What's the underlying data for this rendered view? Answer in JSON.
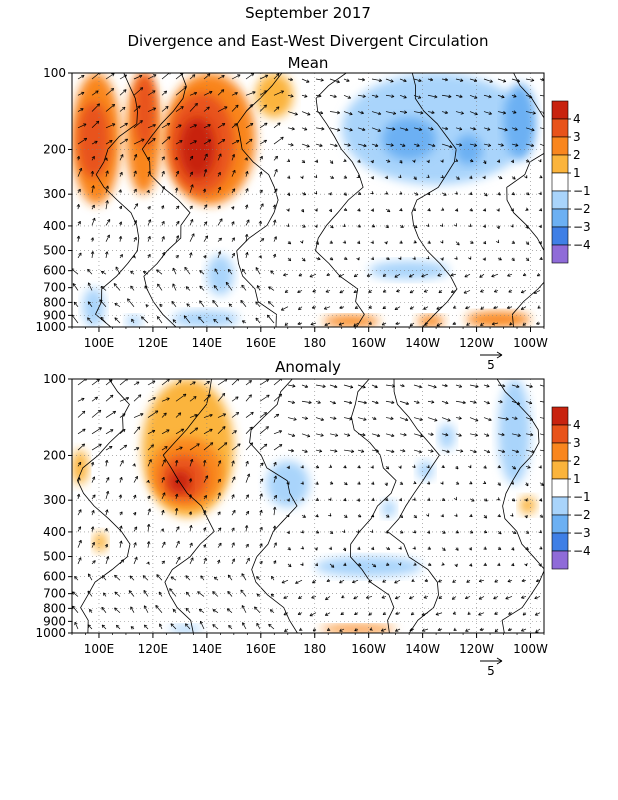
{
  "titles": {
    "line1": "September 2017",
    "line2": "Divergence and East-West Divergent Circulation"
  },
  "colors": {
    "div_pos": [
      "#ffffff",
      "#fbb43c",
      "#f9861e",
      "#e8531a",
      "#c8230f"
    ],
    "div_neg": [
      "#ffffff",
      "#a9d4fb",
      "#6cb0f3",
      "#3f7fe6",
      "#8f6bd8"
    ],
    "vector": "#000000",
    "contour": "#000000",
    "grid": "#7f7f7f"
  },
  "chart_data": [
    {
      "type": "heatmap",
      "panel": "mean",
      "title": "Mean",
      "xlabel": "",
      "ylabel": "",
      "x_ticks": [
        "100E",
        "120E",
        "140E",
        "160E",
        "180",
        "160W",
        "140W",
        "120W",
        "100W"
      ],
      "x_tick_values": [
        100,
        120,
        140,
        160,
        180,
        200,
        220,
        240,
        260
      ],
      "xlim": [
        90,
        265
      ],
      "y_ticks": [
        "100",
        "200",
        "300",
        "400",
        "500",
        "600",
        "700",
        "800",
        "900",
        "1000"
      ],
      "y_tick_values": [
        100,
        200,
        300,
        400,
        500,
        600,
        700,
        800,
        900,
        1000
      ],
      "ylim": [
        1000,
        100
      ],
      "y_scale": "log",
      "grid": true,
      "vector_reference": {
        "label": "5",
        "value": 5
      },
      "legend": {
        "position": "right",
        "labels": [
          "4",
          "3",
          "2",
          "1",
          "-1",
          "-2",
          "-3",
          "-4"
        ]
      },
      "fields": [
        {
          "lon": [
            90,
            108
          ],
          "p": [
            100,
            330
          ],
          "value": 2.5
        },
        {
          "lon": [
            92,
            104
          ],
          "p": [
            130,
            260
          ],
          "value": 3.3
        },
        {
          "lon": [
            110,
            123
          ],
          "p": [
            100,
            300
          ],
          "value": 2.2
        },
        {
          "lon": [
            113,
            121
          ],
          "p": [
            100,
            200
          ],
          "value": 3.2
        },
        {
          "lon": [
            124,
            158
          ],
          "p": [
            100,
            330
          ],
          "value": 2.5
        },
        {
          "lon": [
            126,
            150
          ],
          "p": [
            120,
            300
          ],
          "value": 3.3
        },
        {
          "lon": [
            130,
            143
          ],
          "p": [
            150,
            260
          ],
          "value": 4.2
        },
        {
          "lon": [
            158,
            172
          ],
          "p": [
            100,
            150
          ],
          "value": 1.5
        },
        {
          "lon": [
            190,
            260
          ],
          "p": [
            100,
            275
          ],
          "value": -1.6
        },
        {
          "lon": [
            205,
            225
          ],
          "p": [
            150,
            220
          ],
          "value": -2.6
        },
        {
          "lon": [
            232,
            242
          ],
          "p": [
            175,
            230
          ],
          "value": -2.4
        },
        {
          "lon": [
            250,
            262
          ],
          "p": [
            110,
            220
          ],
          "value": -2.4
        },
        {
          "lon": [
            94,
            102
          ],
          "p": [
            700,
            1000
          ],
          "value": -1.6
        },
        {
          "lon": [
            110,
            116
          ],
          "p": [
            900,
            1000
          ],
          "value": -1.6
        },
        {
          "lon": [
            127,
            152
          ],
          "p": [
            860,
            1000
          ],
          "value": -1.7
        },
        {
          "lon": [
            140,
            150
          ],
          "p": [
            520,
            750
          ],
          "value": -1.6
        },
        {
          "lon": [
            200,
            230
          ],
          "p": [
            550,
            650
          ],
          "value": -1.5
        },
        {
          "lon": [
            183,
            204
          ],
          "p": [
            900,
            1000
          ],
          "value": 2.4
        },
        {
          "lon": [
            218,
            228
          ],
          "p": [
            900,
            1000
          ],
          "value": 2.2
        },
        {
          "lon": [
            236,
            260
          ],
          "p": [
            870,
            1000
          ],
          "value": 2.4
        }
      ]
    },
    {
      "type": "heatmap",
      "panel": "anomaly",
      "title": "Anomaly",
      "xlabel": "",
      "ylabel": "",
      "x_ticks": [
        "100E",
        "120E",
        "140E",
        "160E",
        "180",
        "160W",
        "140W",
        "120W",
        "100W"
      ],
      "x_tick_values": [
        100,
        120,
        140,
        160,
        180,
        200,
        220,
        240,
        260
      ],
      "xlim": [
        90,
        265
      ],
      "y_ticks": [
        "100",
        "200",
        "300",
        "400",
        "500",
        "600",
        "700",
        "800",
        "900",
        "1000"
      ],
      "y_tick_values": [
        100,
        200,
        300,
        400,
        500,
        600,
        700,
        800,
        900,
        1000
      ],
      "ylim": [
        1000,
        100
      ],
      "y_scale": "log",
      "grid": true,
      "vector_reference": {
        "label": "5",
        "value": 5
      },
      "legend": {
        "position": "right",
        "labels": [
          "4",
          "3",
          "2",
          "1",
          "-1",
          "-2",
          "-3",
          "-4"
        ]
      },
      "fields": [
        {
          "lon": [
            90,
            96
          ],
          "p": [
            190,
            260
          ],
          "value": 1.6
        },
        {
          "lon": [
            116,
            150
          ],
          "p": [
            100,
            350
          ],
          "value": 1.8
        },
        {
          "lon": [
            119,
            146
          ],
          "p": [
            170,
            320
          ],
          "value": 2.5
        },
        {
          "lon": [
            123,
            140
          ],
          "p": [
            200,
            300
          ],
          "value": 3.3
        },
        {
          "lon": [
            126,
            134
          ],
          "p": [
            230,
            280
          ],
          "value": 4.2
        },
        {
          "lon": [
            98,
            103
          ],
          "p": [
            400,
            480
          ],
          "value": 1.6
        },
        {
          "lon": [
            162,
            178
          ],
          "p": [
            210,
            320
          ],
          "value": -1.5
        },
        {
          "lon": [
            205,
            210
          ],
          "p": [
            300,
            350
          ],
          "value": -1.4
        },
        {
          "lon": [
            218,
            224
          ],
          "p": [
            210,
            250
          ],
          "value": -1.4
        },
        {
          "lon": [
            226,
            232
          ],
          "p": [
            150,
            190
          ],
          "value": -1.4
        },
        {
          "lon": [
            248,
            260
          ],
          "p": [
            100,
            260
          ],
          "value": -1.6
        },
        {
          "lon": [
            180,
            220
          ],
          "p": [
            500,
            600
          ],
          "value": -1.5
        },
        {
          "lon": [
            126,
            138
          ],
          "p": [
            930,
            1000
          ],
          "value": -1.5
        },
        {
          "lon": [
            182,
            210
          ],
          "p": [
            930,
            1000
          ],
          "value": 2.3
        },
        {
          "lon": [
            256,
            262
          ],
          "p": [
            290,
            340
          ],
          "value": 1.6
        }
      ]
    }
  ]
}
